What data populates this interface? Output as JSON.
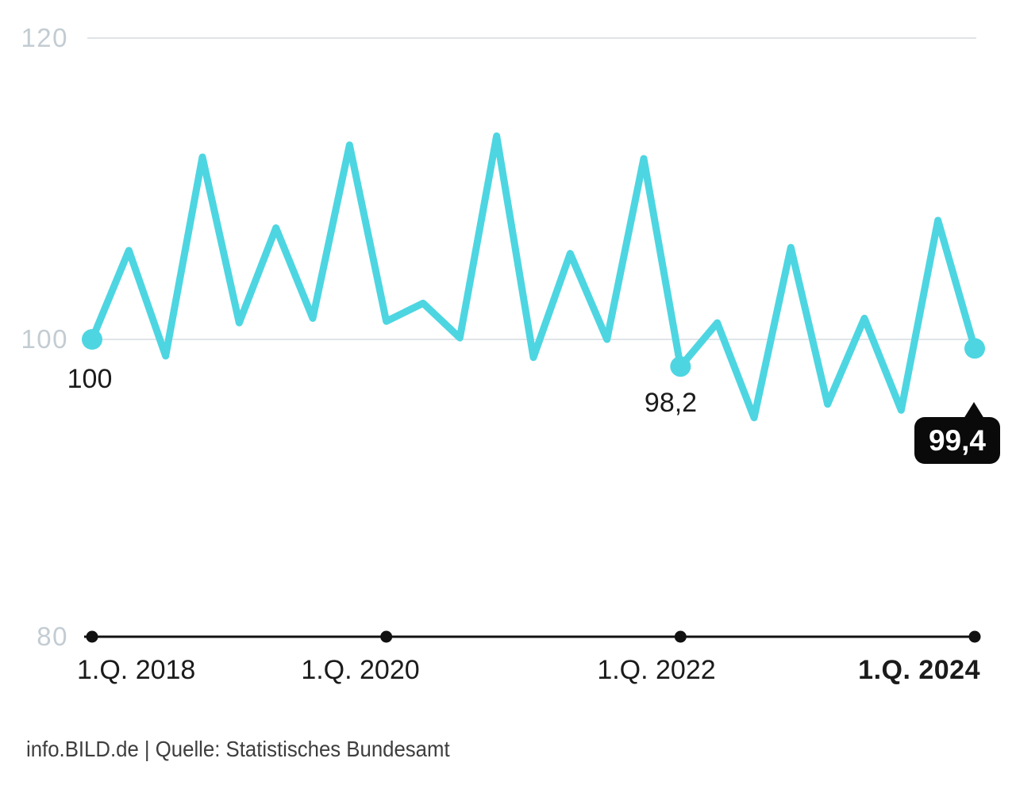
{
  "chart_data": {
    "type": "line",
    "x": [
      "1.Q. 2018",
      "2.Q. 2018",
      "3.Q. 2018",
      "4.Q. 2018",
      "1.Q. 2019",
      "2.Q. 2019",
      "3.Q. 2019",
      "4.Q. 2019",
      "1.Q. 2020",
      "2.Q. 2020",
      "3.Q. 2020",
      "4.Q. 2020",
      "1.Q. 2021",
      "2.Q. 2021",
      "3.Q. 2021",
      "4.Q. 2021",
      "1.Q. 2022",
      "2.Q. 2022",
      "3.Q. 2022",
      "4.Q. 2022",
      "1.Q. 2023",
      "2.Q. 2023",
      "3.Q. 2023",
      "4.Q. 2023",
      "1.Q. 2024"
    ],
    "values": [
      100.0,
      105.9,
      98.9,
      112.1,
      101.1,
      107.4,
      101.4,
      112.9,
      101.2,
      102.4,
      100.1,
      113.5,
      98.8,
      105.7,
      100.0,
      112.0,
      98.2,
      101.1,
      94.8,
      106.1,
      95.7,
      101.4,
      95.3,
      107.9,
      99.4
    ],
    "ylim": [
      80,
      120
    ],
    "yticks": [
      120,
      100,
      80
    ],
    "ytick_labels": [
      "120",
      "100",
      "80"
    ],
    "x_tick_labels": [
      "1.Q. 2018",
      "1.Q. 2020",
      "1.Q. 2022",
      "1.Q. 2024"
    ],
    "x_tick_indices": [
      0,
      8,
      16,
      24
    ],
    "grid": "light horizontal gridlines at 100 and 120, black baseline axis at 80",
    "legend": "none",
    "annotations": [
      {
        "index": 0,
        "label": "100"
      },
      {
        "index": 16,
        "label": "98,2"
      },
      {
        "index": 24,
        "label": "99,4",
        "style": "callout"
      }
    ]
  },
  "colors": {
    "line": "#4dd6e1",
    "grid": "#e0e4e8",
    "axis_line": "#111111",
    "axis_text": "#c3ccd3",
    "text_dark": "#1b1b1b",
    "callout_bg": "#0a0a0a",
    "callout_text": "#ffffff",
    "footer_text": "#3e3e3e"
  },
  "footer": {
    "source_line": "info.BILD.de | Quelle: Statistisches Bundesamt"
  }
}
